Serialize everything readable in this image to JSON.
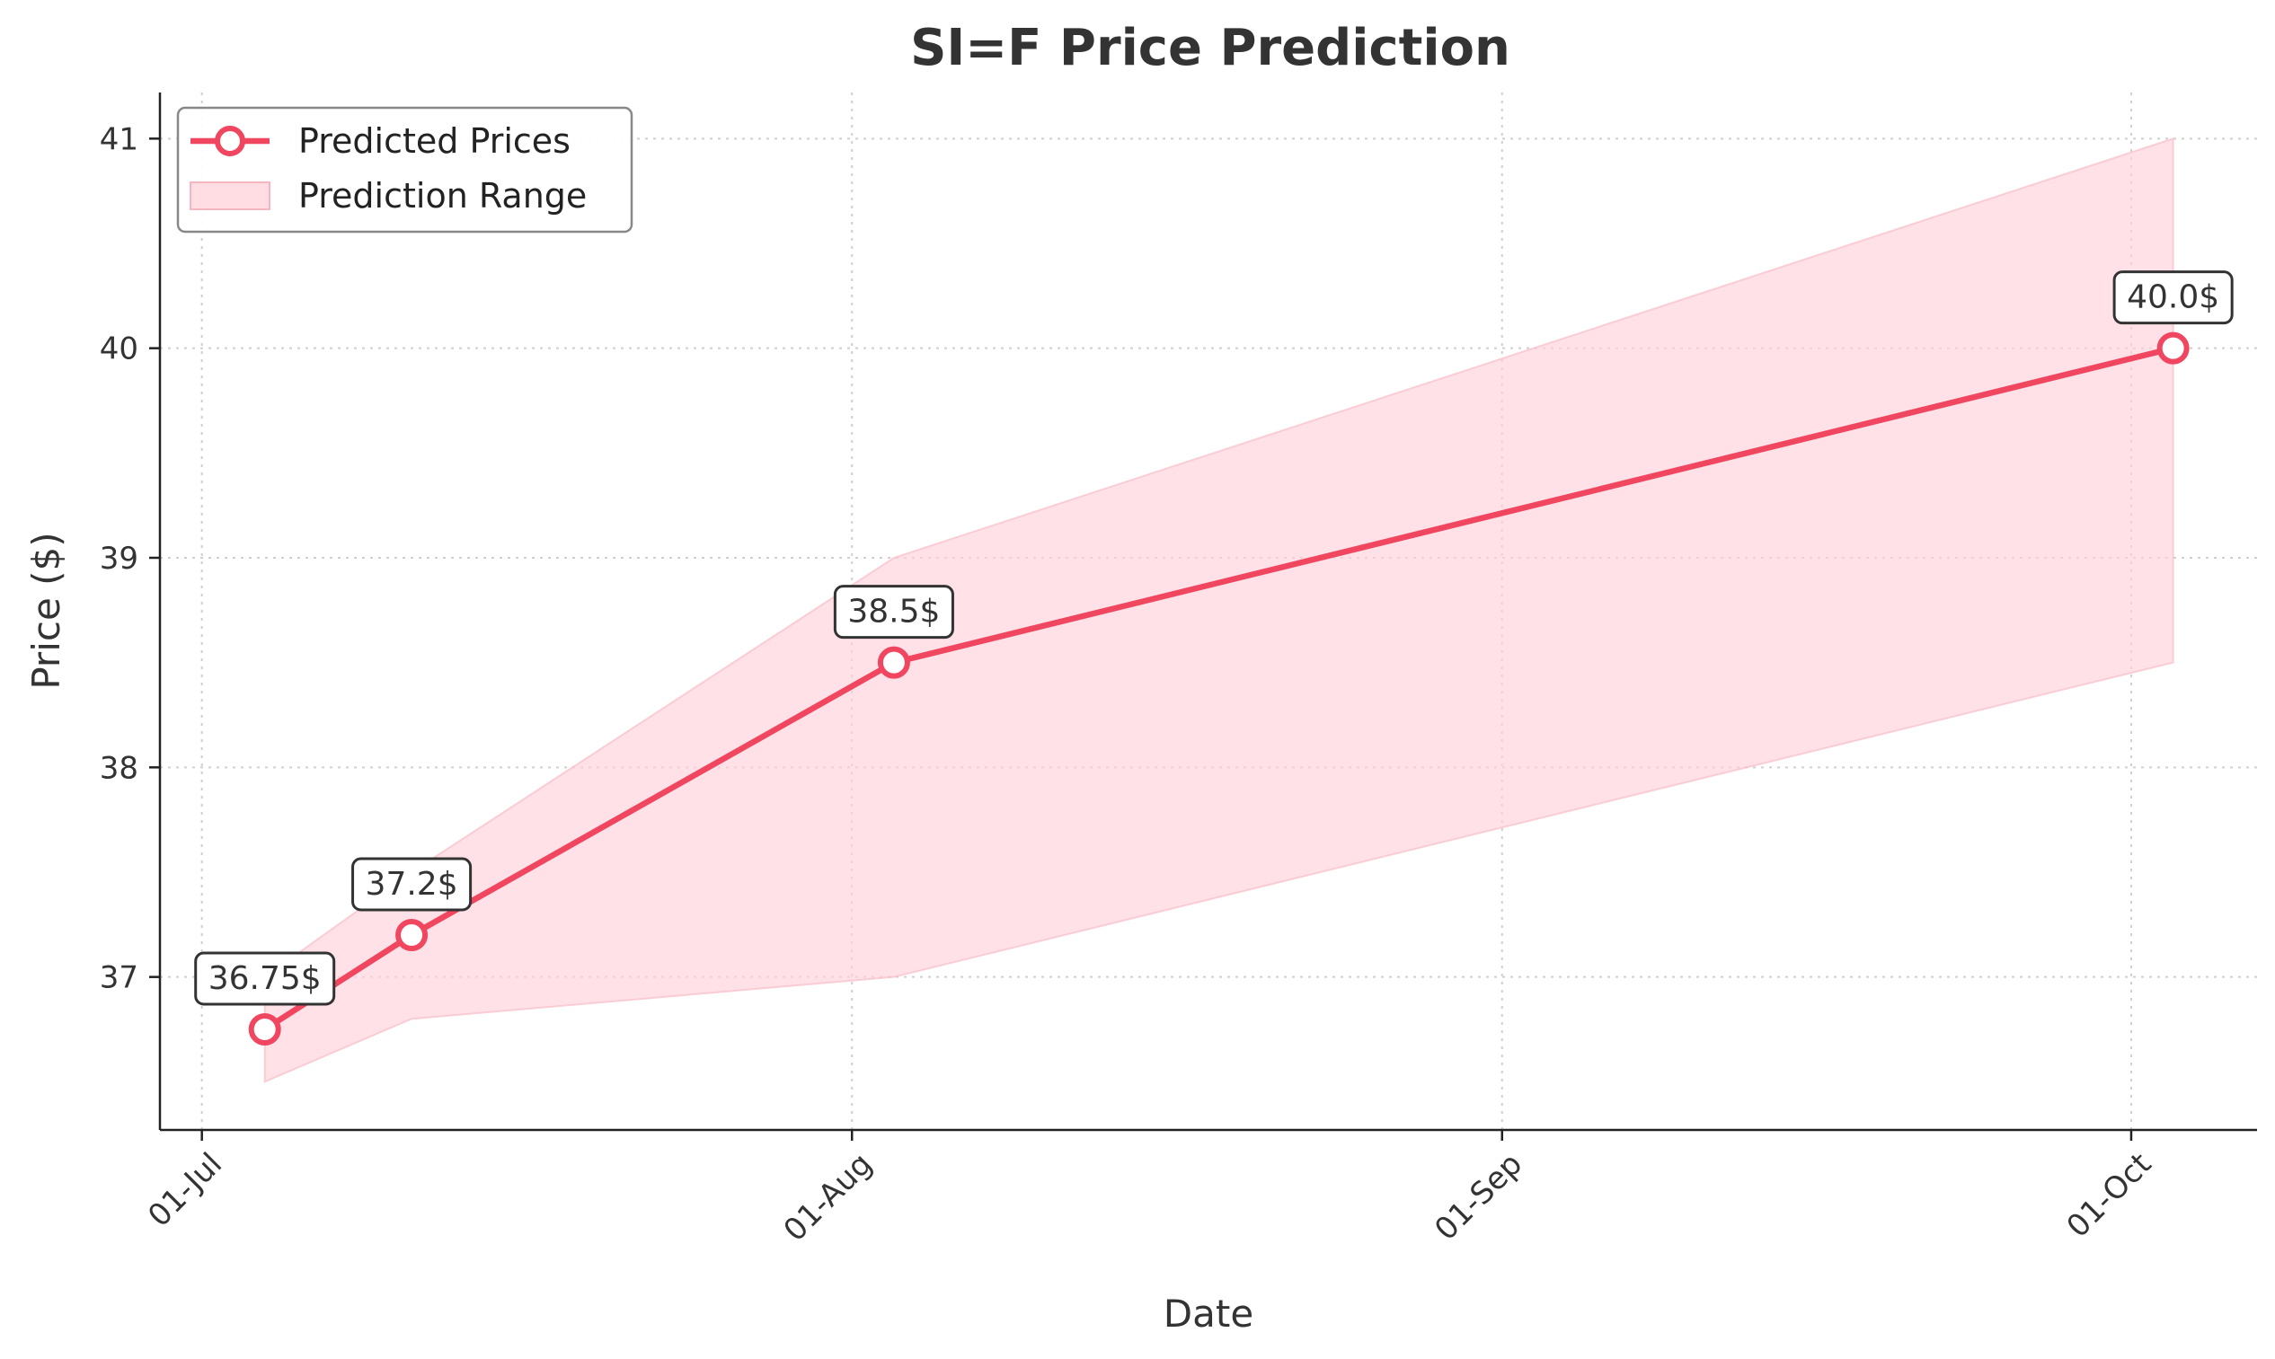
{
  "chart_data": {
    "type": "line",
    "title": "SI=F Price Prediction",
    "xlabel": "Date",
    "ylabel": "Price ($)",
    "x_ticks": [
      {
        "date": "2025-07-01",
        "label": "01-Jul"
      },
      {
        "date": "2025-08-01",
        "label": "01-Aug"
      },
      {
        "date": "2025-09-01",
        "label": "01-Sep"
      },
      {
        "date": "2025-10-01",
        "label": "01-Oct"
      }
    ],
    "y_ticks": [
      37,
      38,
      39,
      40,
      41
    ],
    "xlim": [
      "2025-06-29",
      "2025-10-07"
    ],
    "ylim": [
      36.27,
      41.22
    ],
    "grid": true,
    "legend_position": "top-left",
    "series": [
      {
        "name": "Predicted Prices",
        "color": "#f0465f",
        "points": [
          {
            "x": "2025-07-04",
            "y": 36.75,
            "label": "36.75$"
          },
          {
            "x": "2025-07-11",
            "y": 37.2,
            "label": "37.2$"
          },
          {
            "x": "2025-08-03",
            "y": 38.5,
            "label": "38.5$"
          },
          {
            "x": "2025-10-03",
            "y": 40.0,
            "label": "40.0$"
          }
        ]
      }
    ],
    "range": {
      "name": "Prediction Range",
      "color": "#ffd1da",
      "points": [
        {
          "x": "2025-07-04",
          "low": 36.5,
          "high": 37.0
        },
        {
          "x": "2025-07-11",
          "low": 36.8,
          "high": 37.5
        },
        {
          "x": "2025-08-03",
          "low": 37.0,
          "high": 39.0
        },
        {
          "x": "2025-10-03",
          "low": 38.5,
          "high": 41.0
        }
      ]
    }
  }
}
